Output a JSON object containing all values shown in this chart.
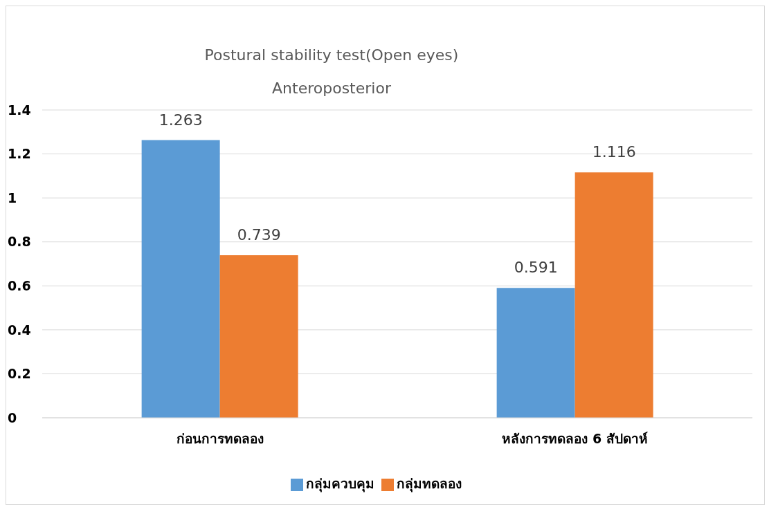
{
  "chart_data": {
    "type": "bar",
    "title": "Postural stability test(Open eyes)",
    "subtitle": "Anteroposterior",
    "categories": [
      "ก่อนการทดลอง",
      "หลังการทดลอง 6 สัปดาห์"
    ],
    "series": [
      {
        "name": "กลุ่มควบคุม",
        "color": "#5b9bd5",
        "values": [
          1.263,
          0.591
        ]
      },
      {
        "name": "กลุ่มทดลอง",
        "color": "#ed7d31",
        "values": [
          0.739,
          1.116
        ]
      }
    ],
    "ylim": [
      0,
      1.4
    ],
    "yticks": [
      0,
      0.2,
      0.4,
      0.6,
      0.8,
      1,
      1.2,
      1.4
    ],
    "grid": "y",
    "legend": "bottom",
    "data_labels": true
  }
}
